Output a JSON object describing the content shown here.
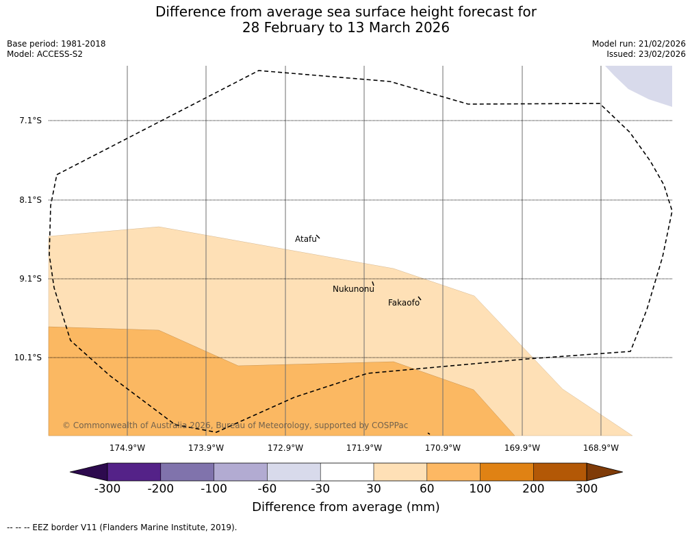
{
  "title": {
    "line1": "Difference from average sea surface height forecast for",
    "line2": "28 February to 13 March 2026"
  },
  "meta": {
    "base_period": "Base period: 1981-2018",
    "model": "Model: ACCESS-S2",
    "model_run": "Model run: 21/02/2026",
    "issued": "Issued: 23/02/2026"
  },
  "latitudes": [
    "7.1°S",
    "8.1°S",
    "9.1°S",
    "10.1°S"
  ],
  "longitudes": [
    "174.9°W",
    "173.9°W",
    "172.9°W",
    "171.9°W",
    "170.9°W",
    "169.9°W",
    "168.9°W"
  ],
  "places": {
    "atafu": "Atafu",
    "nukunonu": "Nukunonu",
    "fakaofo": "Fakaofo"
  },
  "copyright": "© Commonwealth of Australia 2026, Bureau of Meteorology, supported by COSPPac",
  "colorbar": {
    "title": "Difference from average (mm)",
    "labels": [
      "-300",
      "-200",
      "-100",
      "-60",
      "-30",
      "30",
      "60",
      "100",
      "200",
      "300"
    ],
    "colors": [
      "#2d0a4e",
      "#542288",
      "#8073ac",
      "#b2abd2",
      "#d8daeb",
      "#ffffff",
      "#fee0b6",
      "#fdb863",
      "#e08214",
      "#b35806",
      "#7f3b08"
    ]
  },
  "footer": "--  --  -- EEZ border V11 (Flanders Marine Institute, 2019)."
}
